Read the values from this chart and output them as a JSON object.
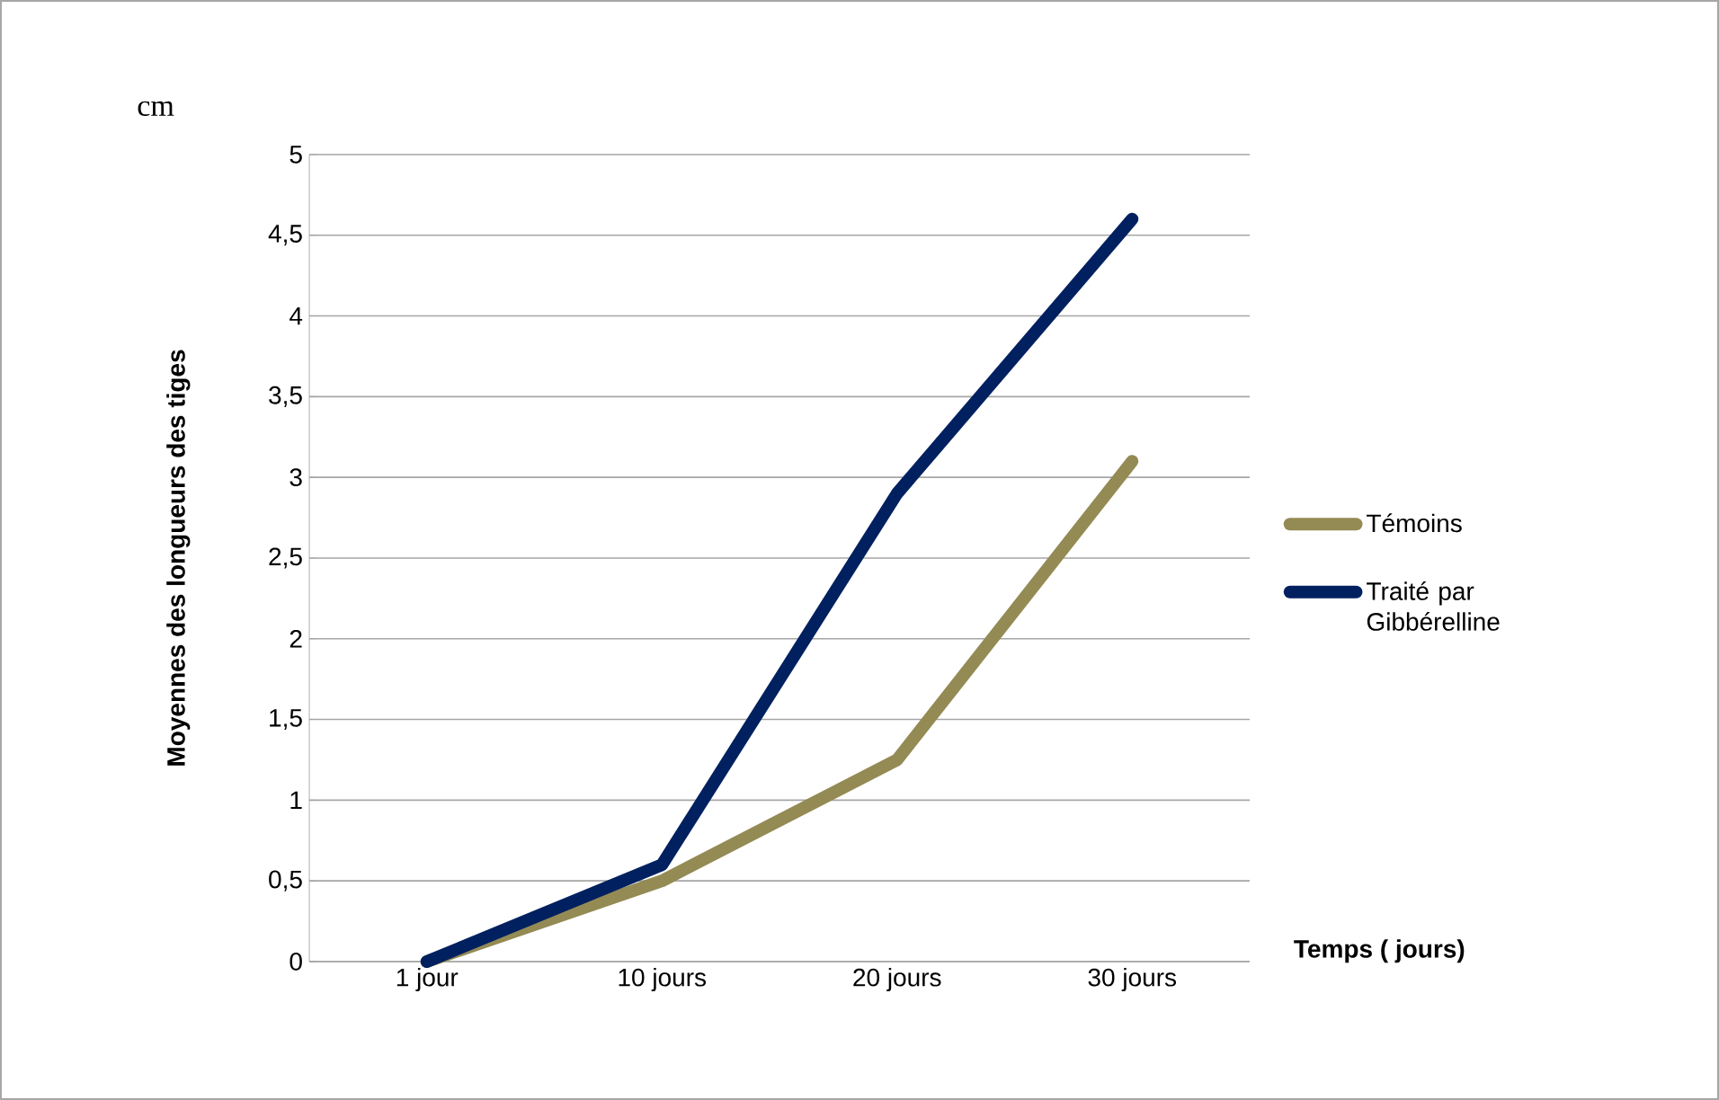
{
  "chart_data": {
    "type": "line",
    "ylabel": "Moyennes des longueurs des tiges",
    "xlabel": "Temps ( jours)",
    "annotations": [
      "cm"
    ],
    "categories": [
      "1 jour",
      "10 jours",
      "20 jours",
      "30 jours"
    ],
    "series": [
      {
        "name": "Témoins",
        "color": "#948a54",
        "values": [
          0,
          0.5,
          1.25,
          3.1
        ]
      },
      {
        "name": "Traité par Gibbérelline",
        "color": "#002060",
        "values": [
          0,
          0.6,
          2.9,
          4.6
        ]
      }
    ],
    "ylim": [
      0,
      5
    ],
    "yticks": [
      0,
      {
        "value": 0.5,
        "label": "0,5"
      },
      1,
      {
        "value": 1.5,
        "label": "1,5"
      },
      2,
      {
        "value": 2.5,
        "label": "2,5"
      },
      3,
      {
        "value": 3.5,
        "label": "3,5"
      },
      4,
      {
        "value": 4.5,
        "label": "4,5"
      },
      5
    ],
    "grid": "y",
    "legend": "right",
    "marker": "none",
    "line_style": "solid"
  }
}
